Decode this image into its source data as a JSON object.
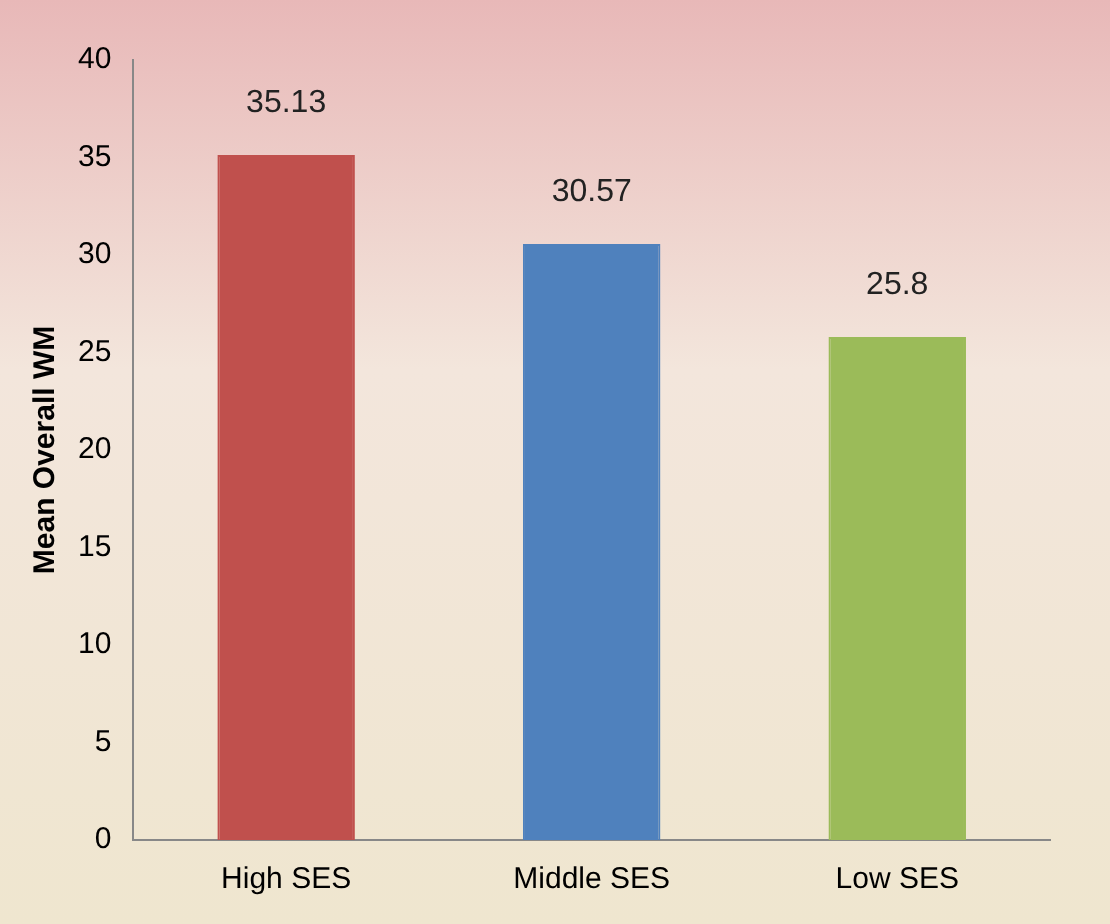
{
  "chart_data": {
    "type": "bar",
    "ylabel": "Mean Overall WM",
    "categories": [
      "High SES",
      "Middle SES",
      "Low SES"
    ],
    "values": [
      35.13,
      30.57,
      25.8
    ],
    "colors": [
      "#c0504d",
      "#4f81bd",
      "#9bbb59"
    ],
    "ylim": [
      0,
      40
    ],
    "yticks": [
      0,
      5,
      10,
      15,
      20,
      25,
      30,
      35,
      40
    ],
    "grid": false,
    "legend": false,
    "data_labels": true
  }
}
